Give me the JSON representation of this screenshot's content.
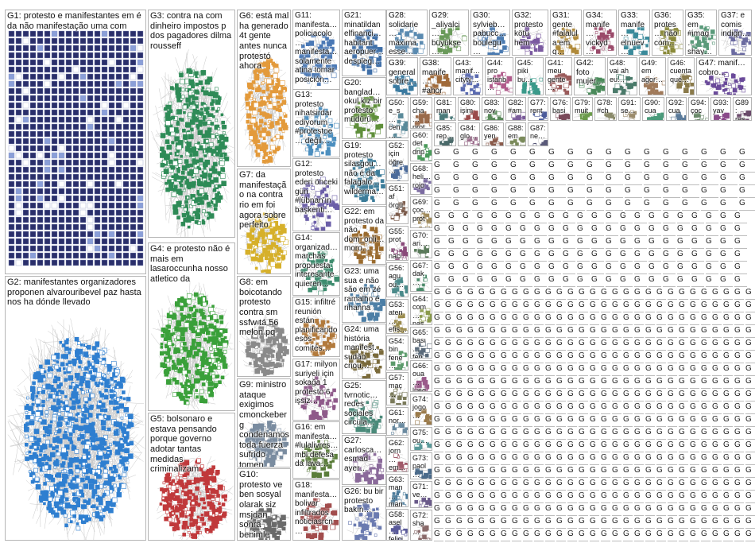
{
  "graph": {
    "big_groups": [
      {
        "id": "g1",
        "text": "G1: protesto e manifestantes em é da não manifestação uma com",
        "style": "grid",
        "color": "#2a2f6b"
      },
      {
        "id": "g2",
        "text": "G2: manifestantes organizadores proponen alvarouribevel paz hasta nos ha dónde llevado",
        "style": "cluster",
        "color": "#2f7fd0"
      },
      {
        "id": "g3",
        "text": "G3: contra na com dinheiro impostos p dos pagadores dilma rousseff",
        "style": "cluster",
        "color": "#2e8b57"
      },
      {
        "id": "g4",
        "text": "G4: e protesto não é mais em lasaroccunha nosso atletico da",
        "style": "cluster",
        "color": "#3aa03a"
      },
      {
        "id": "g5",
        "text": "G5: bolsonaro e estava pensando porque governo adotar tantas medidas criminalizam",
        "style": "cluster",
        "color": "#c0393b"
      },
      {
        "id": "g6",
        "text": "G6: está mal ha generado 4t gente antes nunca protestó ahora",
        "style": "cluster",
        "color": "#e39a3b"
      },
      {
        "id": "g7",
        "text": "G7: da manifestação na contra rio em foi agora sobre perfeito",
        "style": "cluster",
        "color": "#d6b02a"
      },
      {
        "id": "g8",
        "text": "G8: em boicotando protesto contra sm ssfw tá 56 melon pq",
        "style": "cluster",
        "color": "#8a8a8a"
      },
      {
        "id": "g9",
        "text": "G9: ministro ataque exigimos cmonckeberg condenamos toda fuerza sufrido tomen medidas",
        "style": "cluster",
        "color": "#7a8ca0"
      },
      {
        "id": "g10",
        "text": "G10: protesto ve ben sosyal olarak siz msjdan sonra benimle",
        "style": "cluster",
        "color": "#6a6a6a"
      }
    ],
    "small_groups": [
      {
        "id": "g11",
        "text": "G11: manifesta… policiacolo… manifesta… solamente atina tomar posición…",
        "color": "#4a78b5"
      },
      {
        "id": "g12",
        "text": "G12: protesto ederi önceki gün #lübnan'ın başkenti…",
        "color": "#6b5ea8"
      },
      {
        "id": "g13",
        "text": "G13: protesto nihatsirdar ediyorum #protestoe… değil…",
        "color": "#4c8fbf"
      },
      {
        "id": "g14",
        "text": "G14: organizad… marchas propuesta interesante quieren…",
        "color": "#3d8c6e"
      },
      {
        "id": "g15",
        "text": "G15: infiltré reunión están planificando esos comités…",
        "color": "#b27a3c"
      },
      {
        "id": "g16",
        "text": "G16: em manifesta… #lulalivres… mbl defesa da lava…",
        "color": "#5a7d3a"
      },
      {
        "id": "g17",
        "text": "G17: milyon suriyeli için sokağa 1 protesto 6 işsiz…",
        "color": "#8f5a8a"
      },
      {
        "id": "g18",
        "text": "G18: manifesta… bolivar infiltrados noticiasrcn…",
        "color": "#a24d4d"
      },
      {
        "id": "g19",
        "text": "G19: protesto silasgou… não é da falagalo… wilderma…",
        "color": "#3c7d9a"
      },
      {
        "id": "g20",
        "text": "G20: banglad… okul kız bir protesto müdürü…",
        "color": "#5f8f3a"
      },
      {
        "id": "g21",
        "text": "G21: minatildan elfinanci… habitant aeropuer… despleg…",
        "color": "#3f6fa8"
      },
      {
        "id": "g22",
        "text": "G22: em protesto da não dom_onli… moro…",
        "color": "#9a6b2e"
      },
      {
        "id": "g23",
        "text": "G23: uma sua e não são em zé ramalho é rihanna",
        "color": "#4d7fa6"
      },
      {
        "id": "g24",
        "text": "G24: uma história manifest… sudão criou…",
        "color": "#7a6a3a"
      },
      {
        "id": "g25",
        "text": "G25: tvrnotic… redes sociales circula…",
        "color": "#4a8a7a"
      },
      {
        "id": "g26",
        "text": "G26: bu bir protesto bakın…",
        "color": "#6a7ab0"
      },
      {
        "id": "g27",
        "text": "G27: carlosca… esmad ayer…",
        "color": "#8a6a9a"
      },
      {
        "id": "g28",
        "text": "G28: solidarie… máxima esse…",
        "color": "#5a8ab0"
      },
      {
        "id": "g29",
        "text": "G29: _aliyalci… büyükşe… belediye…",
        "color": "#6a9a5a"
      },
      {
        "id": "g30",
        "text": "G30: sylvieb… pabucc… boulegu…",
        "color": "#4a7ab0"
      },
      {
        "id": "g31",
        "text": "G31: gente #falalula em q…",
        "color": "#b08a3a"
      },
      {
        "id": "g32",
        "text": "G32: protesto kötü hem…",
        "color": "#7a5aa0"
      },
      {
        "id": "g33",
        "text": "G33: manife… elnuev… según…",
        "color": "#3a8a9a"
      },
      {
        "id": "g34",
        "text": "G34: manife… vickyd… march…",
        "color": "#9a4a6a"
      },
      {
        "id": "g35",
        "text": "G35: em #imag… shay…",
        "color": "#5a9a7a"
      },
      {
        "id": "g36",
        "text": "G36: protes… não com…",
        "color": "#8a8a3a"
      },
      {
        "id": "g37",
        "text": "G37: e comis indign…",
        "color": "#6a6aa0"
      },
      {
        "id": "g38",
        "text": "G38: manife… #ahor…",
        "color": "#a06a3a"
      },
      {
        "id": "g39",
        "text": "G39: general sobre…",
        "color": "#3a7aa0"
      },
      {
        "id": "g40",
        "text": "G40: det dnp…",
        "color": "#7a9a4a"
      },
      {
        "id": "g41",
        "text": "G41: meu gente…",
        "color": "#9a5a5a"
      },
      {
        "id": "g42",
        "text": "G42: foto mujer…",
        "color": "#4a8a5a"
      },
      {
        "id": "g43",
        "text": "G43: manif… cityty…",
        "color": "#5a6ab0"
      },
      {
        "id": "g44",
        "text": "G44: pro istanb…",
        "color": "#b05a8a"
      },
      {
        "id": "g45",
        "text": "G45: piki bu…",
        "color": "#3a9a8a"
      },
      {
        "id": "g46",
        "text": "G46: cuenta qué…",
        "color": "#8a7a4a"
      },
      {
        "id": "g47",
        "text": "G47: manif… cobro…",
        "color": "#6a4a9a"
      },
      {
        "id": "g48",
        "text": "G48: vai ah eu…",
        "color": "#4a7a6a"
      },
      {
        "id": "g49",
        "text": "G49: em agor…",
        "color": "#a07a5a"
      },
      {
        "id": "g50",
        "text": "G50: e_s… cen… dón…",
        "color": "#5a8a9a"
      },
      {
        "id": "g51",
        "text": "G51: af örgü…",
        "color": "#7a5a4a"
      },
      {
        "id": "g52",
        "text": "G52: için öğre…",
        "color": "#4a6a9a"
      },
      {
        "id": "g53",
        "text": "G53: aten… efis… rjr…",
        "color": "#9a8a4a"
      },
      {
        "id": "g54",
        "text": "G54: bin fene…",
        "color": "#5a9a6a"
      },
      {
        "id": "g55",
        "text": "G55: prot… naci…",
        "color": "#8a4a7a"
      },
      {
        "id": "g56",
        "text": "G56: agu ou…",
        "color": "#4a8a8a"
      },
      {
        "id": "g57",
        "text": "G57: maç…",
        "color": "#7a7a5a"
      },
      {
        "id": "g58",
        "text": "G58: asel… felici…",
        "color": "#5a5a9a"
      },
      {
        "id": "g59",
        "text": "G59: cha… prot…",
        "color": "#9a6a4a"
      },
      {
        "id": "g60",
        "text": "G60: det dnp…",
        "color": "#4a9a5a"
      },
      {
        "id": "g61",
        "text": "G61: nor…",
        "color": "#6a8aa0"
      },
      {
        "id": "g62",
        "text": "G62: jorn… em…",
        "color": "#a05a6a"
      },
      {
        "id": "g63",
        "text": "G63: man… man…",
        "color": "#4a7a9a"
      },
      {
        "id": "g64",
        "text": "G64: com… pas…",
        "color": "#8a9a4a"
      },
      {
        "id": "g65",
        "text": "G65: bası… fen…",
        "color": "#5a6a7a"
      },
      {
        "id": "g66",
        "text": "G66: oua… lueg…",
        "color": "#9a5a8a"
      },
      {
        "id": "g67",
        "text": "G67: dak…",
        "color": "#4a8a6a"
      },
      {
        "id": "g68",
        "text": "G68: heli… rojo…",
        "color": "#7a6aa0"
      },
      {
        "id": "g69",
        "text": "G69: çoc… prot…",
        "color": "#a08a5a"
      },
      {
        "id": "g70",
        "text": "G70: ari…",
        "color": "#5a7a5a"
      },
      {
        "id": "g71",
        "text": "G71: ve…",
        "color": "#6a5a8a"
      },
      {
        "id": "g72",
        "text": "G72: sha…",
        "color": "#8a6a6a"
      },
      {
        "id": "g73",
        "text": "G73: paol…",
        "color": "#4a6a8a"
      },
      {
        "id": "g74",
        "text": "G74: jogo…",
        "color": "#9a7a4a"
      },
      {
        "id": "g75",
        "text": "G75: ou…",
        "color": "#5a9a9a"
      },
      {
        "id": "g76",
        "text": "G76: basi…",
        "color": "#7a4a5a"
      },
      {
        "id": "g77",
        "text": "G77: rent…",
        "color": "#4a5a9a"
      },
      {
        "id": "g78",
        "text": "G78: #ch…",
        "color": "#8a8a6a"
      },
      {
        "id": "g79",
        "text": "G79: muit…",
        "color": "#6a9a4a"
      },
      {
        "id": "g80",
        "text": "G80: işim…",
        "color": "#9a4a4a"
      },
      {
        "id": "g81",
        "text": "G81: man…",
        "color": "#4a7a7a"
      },
      {
        "id": "g82",
        "text": "G82: #am…",
        "color": "#7a5a9a"
      },
      {
        "id": "g83",
        "text": "G83: nov…",
        "color": "#5a8a5a"
      },
      {
        "id": "g84",
        "text": "G84: glo…",
        "color": "#9a6a8a"
      },
      {
        "id": "g85",
        "text": "G85: rep…",
        "color": "#4a6a6a"
      },
      {
        "id": "g86",
        "text": "G86: yen…",
        "color": "#8a5a4a"
      },
      {
        "id": "g87",
        "text": "G87: ne…",
        "color": "#5a5a7a"
      },
      {
        "id": "g88",
        "text": "G88: em…",
        "color": "#7a8a5a"
      },
      {
        "id": "g89",
        "text": "G89: res…",
        "color": "#6a4a6a"
      },
      {
        "id": "g90",
        "text": "G90: cua…",
        "color": "#4a9a7a"
      },
      {
        "id": "g91",
        "text": "G91: se…",
        "color": "#9a8a6a"
      },
      {
        "id": "g92",
        "text": "G92: cua…",
        "color": "#5a7a9a"
      },
      {
        "id": "g93",
        "text": "G93: yav…",
        "color": "#8a4a8a"
      },
      {
        "id": "g94",
        "text": "G94: çoc…",
        "color": "#6a8a6a"
      }
    ],
    "label_prefix": "G"
  }
}
